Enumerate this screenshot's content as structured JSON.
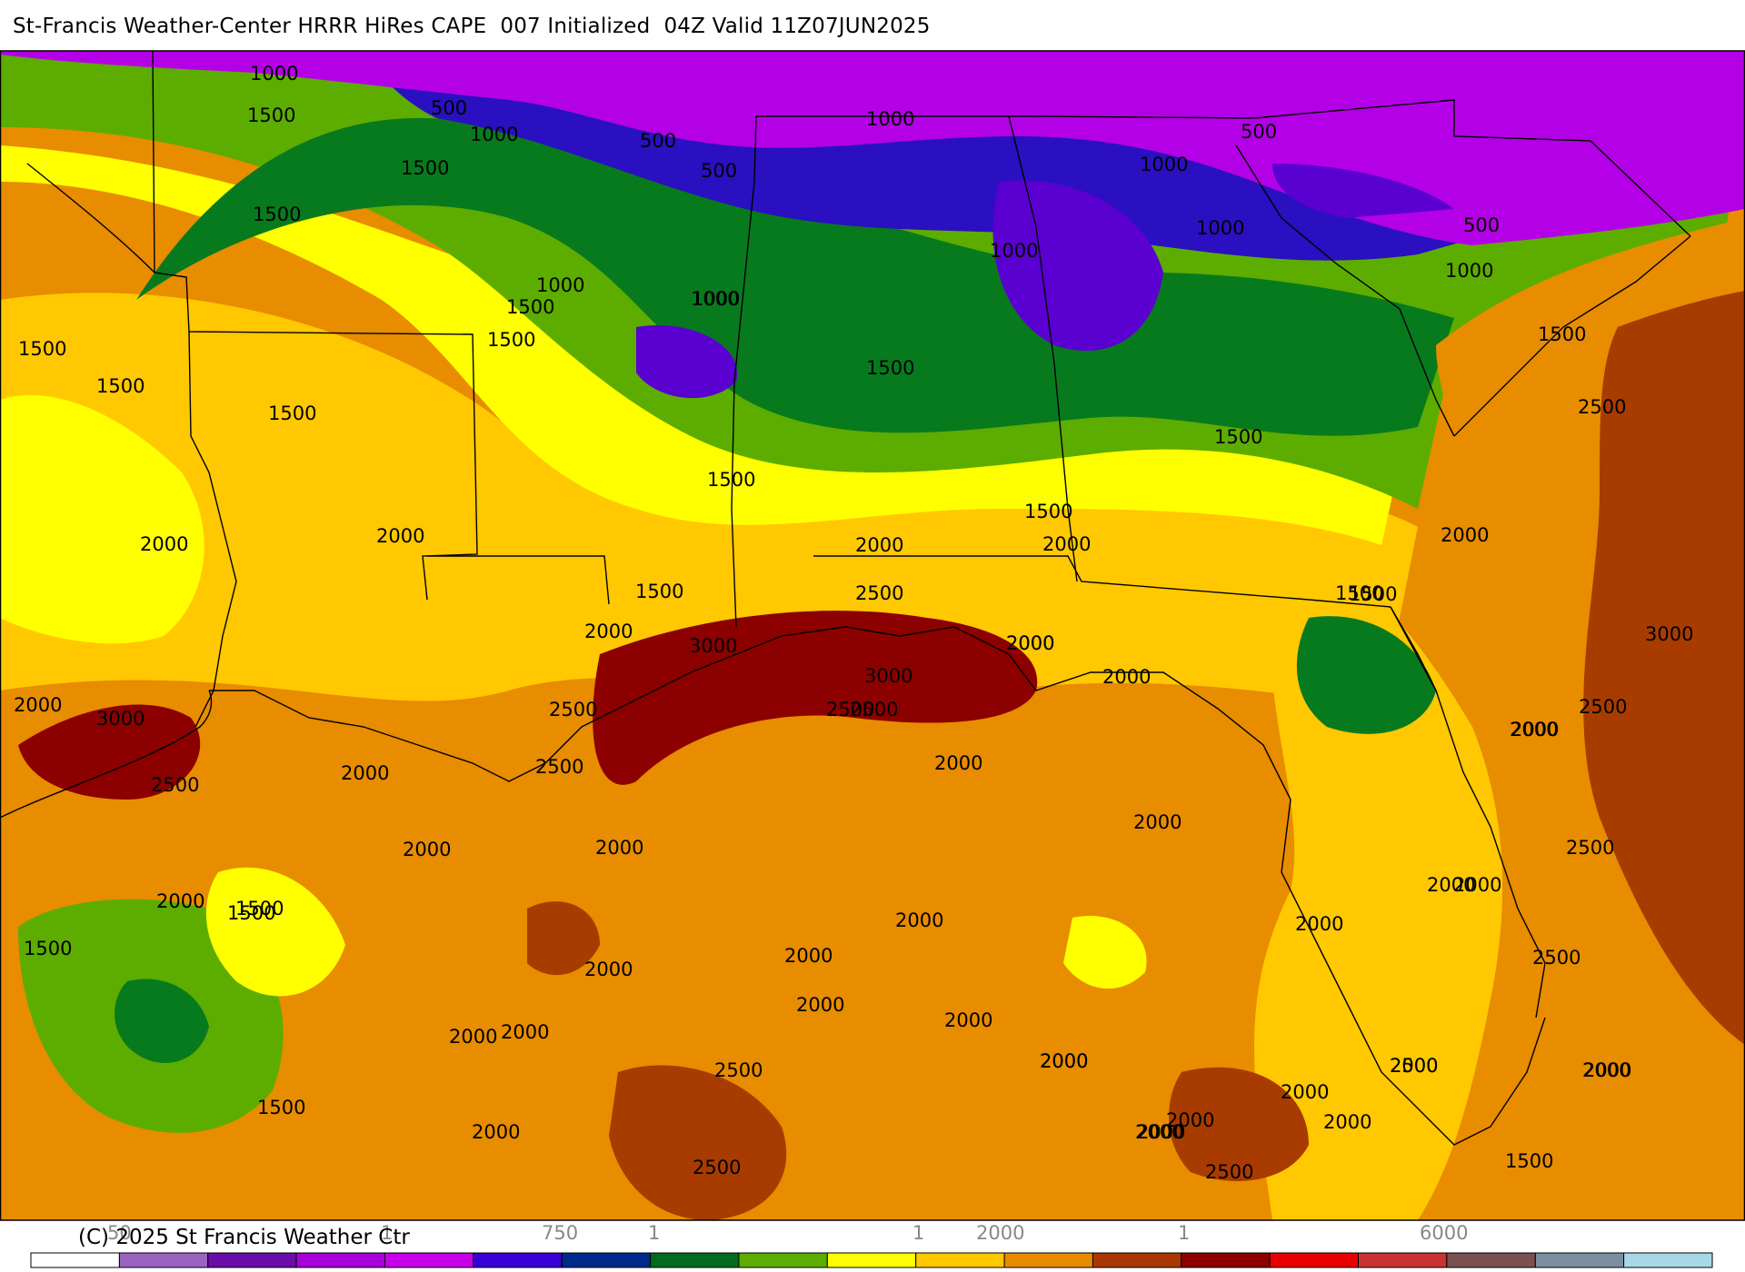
{
  "title": "St-Francis Weather-Center HRRR HiRes CAPE  007 Initialized  04Z Valid 11Z07JUN2025",
  "copyright": "(C) 2025 St Francis Weather Ctr",
  "map": {
    "contour_labels": [
      "1000",
      "500",
      "1500",
      "1000",
      "500",
      "500",
      "1000",
      "1000",
      "500",
      "1500",
      "1500",
      "1000",
      "1000",
      "1000",
      "500",
      "1000",
      "1500",
      "1000",
      "1500",
      "1000",
      "1500",
      "1500",
      "1500",
      "1500",
      "1500",
      "1500",
      "1500",
      "1500",
      "1500",
      "2500",
      "2000",
      "2000",
      "2000",
      "1500",
      "2000",
      "1500",
      "2000",
      "2000",
      "2500",
      "3000",
      "2000",
      "3000",
      "2000",
      "2500",
      "2000",
      "3000",
      "2500",
      "2500",
      "2500",
      "2000",
      "2000",
      "2000",
      "2000",
      "2000",
      "2500",
      "2000",
      "1500",
      "2000",
      "1500",
      "2000",
      "2000",
      "2000",
      "2000",
      "2000",
      "2500",
      "2000",
      "2000",
      "2000",
      "2000",
      "2000",
      "2000",
      "2000",
      "2000",
      "2000",
      "2000",
      "2500",
      "2000",
      "2000",
      "1500",
      "2000",
      "2500",
      "2000",
      "2500",
      "2500",
      "1500",
      "2000",
      "2000",
      "2500",
      "2500",
      "1500",
      "2000",
      "3000",
      "2000"
    ]
  },
  "legend": {
    "colors": [
      "#ffffff",
      "#9a63c2",
      "#6a0da8",
      "#a800d8",
      "#c800e8",
      "#3a00d8",
      "#002a8a",
      "#006b1f",
      "#5cad00",
      "#ffff00",
      "#ffc800",
      "#e88a00",
      "#a83800",
      "#8c0000",
      "#e80000",
      "#c83232",
      "#7a5050",
      "#7a8ea0",
      "#a8d8e8"
    ],
    "tick_labels": [
      "50",
      "1",
      "750",
      "1",
      "1",
      "2000",
      "1",
      "6000"
    ]
  },
  "colors": {
    "purple": "#b400e6",
    "violet": "#5a00d0",
    "blue": "#2a10c0",
    "dark_green": "#087a1e",
    "green": "#5cad00",
    "yellow": "#ffff00",
    "gold": "#ffc800",
    "orange": "#e88c00",
    "brown": "#a83c00",
    "dark_red": "#8c0000"
  }
}
